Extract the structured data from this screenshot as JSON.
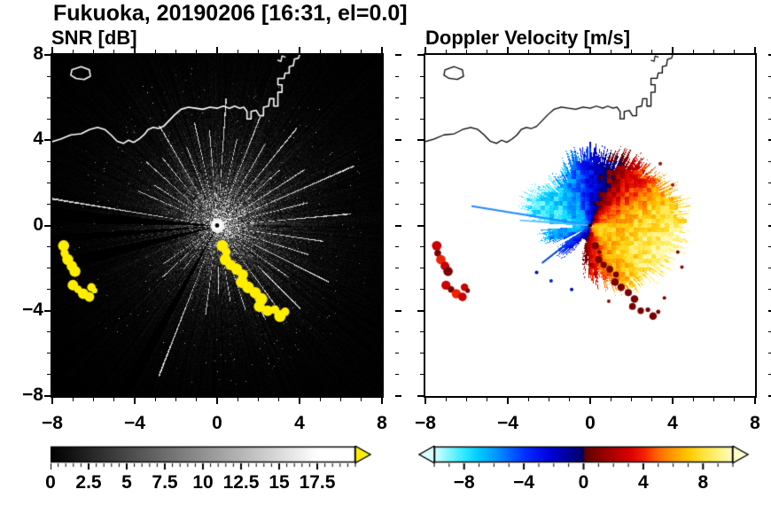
{
  "chart_data": {
    "type": "heatmap",
    "title": "Fukuoka, 20190206 [16:31, el=0.0]",
    "station": "Fukuoka",
    "date": "20190206",
    "time": "16:31",
    "elevation_deg": 0.0,
    "panels": [
      {
        "name": "snr",
        "title": "SNR [dB]",
        "xlim": [
          -8,
          8
        ],
        "ylim": [
          -8,
          8
        ],
        "xticks": [
          -8,
          -4,
          0,
          4,
          8
        ],
        "yticks": [
          -8,
          -4,
          0,
          4,
          8
        ],
        "minor_tick_step": 1,
        "background": "#000000",
        "colorbar": {
          "min": 0,
          "max": 20,
          "ticks": [
            0,
            2.5,
            5,
            7.5,
            10,
            12.5,
            15,
            17.5
          ],
          "minor_step": 0.5,
          "cmap": "grayscale",
          "cmap_max_value": 17.5,
          "over_color": "#ffee00"
        }
      },
      {
        "name": "velocity",
        "title": "Doppler Velocity [m/s]",
        "xlim": [
          -8,
          8
        ],
        "ylim": [
          -8,
          8
        ],
        "xticks": [
          -8,
          -4,
          0,
          4,
          8
        ],
        "yticks": [
          -8,
          -4,
          0,
          4,
          8
        ],
        "minor_tick_step": 1,
        "background": "#ffffff",
        "colorbar": {
          "min": -10,
          "max": 10,
          "ticks": [
            -8,
            -4,
            0,
            4,
            8
          ],
          "minor_step": 1,
          "stops": [
            [
              -10,
              "#d8ffff"
            ],
            [
              -9,
              "#7df5ff"
            ],
            [
              -8,
              "#2ee8ff"
            ],
            [
              -7,
              "#00c8ff"
            ],
            [
              -6,
              "#009dff"
            ],
            [
              -5,
              "#0066ff"
            ],
            [
              -4,
              "#0033ff"
            ],
            [
              -3,
              "#0011ee"
            ],
            [
              -2,
              "#0000cc"
            ],
            [
              -1,
              "#000099"
            ],
            [
              -0.05,
              "#000060"
            ],
            [
              0.05,
              "#5c0000"
            ],
            [
              1,
              "#8a0000"
            ],
            [
              2,
              "#b00000"
            ],
            [
              3,
              "#d60000"
            ],
            [
              4,
              "#f32000"
            ],
            [
              5,
              "#ff6a00"
            ],
            [
              6,
              "#ff9d00"
            ],
            [
              7,
              "#ffc800"
            ],
            [
              8,
              "#ffe43c"
            ],
            [
              9,
              "#fff27f"
            ],
            [
              10,
              "#fffdc8"
            ]
          ]
        }
      }
    ],
    "radar": {
      "center_xy": [
        0,
        0
      ],
      "max_radial_velocity": 8.6,
      "wind_dir_deg": -20
    },
    "coastline": {
      "main": [
        [
          -8.3,
          3.85
        ],
        [
          -7.6,
          4.05
        ],
        [
          -7.1,
          4.25
        ],
        [
          -6.6,
          4.3
        ],
        [
          -6.2,
          4.5
        ],
        [
          -5.8,
          4.6
        ],
        [
          -5.45,
          4.5
        ],
        [
          -5.15,
          4.25
        ],
        [
          -4.85,
          3.95
        ],
        [
          -4.55,
          3.85
        ],
        [
          -4.3,
          4.0
        ],
        [
          -4.05,
          3.9
        ],
        [
          -3.8,
          4.05
        ],
        [
          -3.55,
          4.25
        ],
        [
          -3.35,
          4.5
        ],
        [
          -3.1,
          4.6
        ],
        [
          -2.85,
          4.55
        ],
        [
          -2.6,
          4.65
        ],
        [
          -2.35,
          4.9
        ],
        [
          -2.05,
          5.2
        ],
        [
          -1.75,
          5.45
        ],
        [
          -1.4,
          5.55
        ],
        [
          -1.05,
          5.5
        ],
        [
          -0.7,
          5.45
        ],
        [
          -0.35,
          5.55
        ],
        [
          0.0,
          5.5
        ],
        [
          0.3,
          5.6
        ],
        [
          0.6,
          5.5
        ],
        [
          0.85,
          5.6
        ],
        [
          1.1,
          5.5
        ],
        [
          1.3,
          5.55
        ],
        [
          1.45,
          5.35
        ],
        [
          1.45,
          5.0
        ],
        [
          1.65,
          5.0
        ],
        [
          1.65,
          5.35
        ],
        [
          1.9,
          5.4
        ],
        [
          2.05,
          5.15
        ],
        [
          2.25,
          5.15
        ],
        [
          2.25,
          5.55
        ],
        [
          2.5,
          5.6
        ],
        [
          2.55,
          5.95
        ],
        [
          2.75,
          5.95
        ],
        [
          2.75,
          5.6
        ],
        [
          2.95,
          5.6
        ],
        [
          2.95,
          6.25
        ],
        [
          3.15,
          6.25
        ],
        [
          3.15,
          6.6
        ],
        [
          2.95,
          6.6
        ],
        [
          2.95,
          6.9
        ],
        [
          3.25,
          6.9
        ],
        [
          3.3,
          7.15
        ],
        [
          3.5,
          7.15
        ],
        [
          3.5,
          7.45
        ],
        [
          3.7,
          7.5
        ],
        [
          3.75,
          7.8
        ],
        [
          3.95,
          7.85
        ],
        [
          4.05,
          8.15
        ]
      ],
      "island": [
        [
          -7.05,
          7.3
        ],
        [
          -6.6,
          7.45
        ],
        [
          -6.2,
          7.3
        ],
        [
          -6.15,
          7.0
        ],
        [
          -6.45,
          6.85
        ],
        [
          -6.85,
          6.9
        ],
        [
          -7.1,
          7.05
        ],
        [
          -7.05,
          7.3
        ]
      ],
      "spit": [
        [
          2.95,
          7.75
        ],
        [
          3.1,
          7.7
        ],
        [
          3.15,
          7.95
        ],
        [
          3.3,
          7.9
        ]
      ]
    },
    "echo_patches": {
      "southwest_arc1": [
        [
          -7.45,
          -0.95
        ],
        [
          -7.4,
          -1.3
        ],
        [
          -7.25,
          -1.6
        ],
        [
          -7.05,
          -1.9
        ],
        [
          -6.9,
          -2.15
        ]
      ],
      "southwest_arc2": [
        [
          -7.0,
          -2.8
        ],
        [
          -6.75,
          -3.0
        ],
        [
          -6.5,
          -3.2
        ],
        [
          -6.2,
          -3.35
        ]
      ],
      "southwest_small": [
        [
          -6.1,
          -2.9
        ],
        [
          -5.95,
          -3.05
        ]
      ],
      "southeast_chain": [
        [
          0.25,
          -0.95
        ],
        [
          0.45,
          -1.25
        ],
        [
          0.4,
          -1.6
        ],
        [
          0.65,
          -1.85
        ],
        [
          0.95,
          -2.05
        ],
        [
          1.25,
          -2.3
        ],
        [
          1.2,
          -2.65
        ],
        [
          1.5,
          -2.9
        ],
        [
          1.85,
          -3.15
        ],
        [
          2.15,
          -3.45
        ],
        [
          2.05,
          -3.8
        ],
        [
          2.45,
          -4.0
        ],
        [
          2.8,
          -3.95
        ],
        [
          3.05,
          -4.25
        ],
        [
          3.3,
          -4.05
        ]
      ],
      "snr_color": "#ffee00",
      "vel_colors": [
        "#cc0000",
        "#7a0000",
        "#ee2200"
      ]
    },
    "snr_field": {
      "spokes": [
        [
          5,
          6.5
        ],
        [
          14,
          4.5
        ],
        [
          23,
          7.2
        ],
        [
          32,
          5
        ],
        [
          41,
          4
        ],
        [
          50,
          6
        ],
        [
          59,
          4.5
        ],
        [
          68,
          5.5
        ],
        [
          77,
          4.2
        ],
        [
          86,
          6
        ],
        [
          95,
          4.5
        ],
        [
          103,
          5
        ],
        [
          112,
          4
        ],
        [
          121,
          5.5
        ],
        [
          130,
          4.2
        ],
        [
          139,
          4.6
        ],
        [
          148,
          3.6
        ],
        [
          157,
          4.2
        ],
        [
          171,
          8.2
        ],
        [
          214,
          3.2
        ],
        [
          222,
          3.6
        ],
        [
          231,
          2.6
        ],
        [
          248,
          7.6
        ],
        [
          262,
          4.2
        ],
        [
          271,
          3.2
        ],
        [
          280,
          3.6
        ],
        [
          289,
          4.2
        ],
        [
          298,
          5
        ],
        [
          307,
          4.6
        ],
        [
          316,
          5.6
        ],
        [
          325,
          4.2
        ],
        [
          334,
          6
        ],
        [
          343,
          4.6
        ],
        [
          352,
          5.2
        ]
      ],
      "blocked_wedges": [
        [
          174,
          179
        ],
        [
          183,
          186
        ],
        [
          191,
          196
        ],
        [
          238,
          242
        ]
      ],
      "sector_gain": [
        [
          0,
          1.1
        ],
        [
          50,
          1.18
        ],
        [
          100,
          1.0
        ],
        [
          140,
          0.9
        ],
        [
          180,
          0.78
        ],
        [
          230,
          0.7
        ],
        [
          280,
          0.85
        ],
        [
          330,
          1.05
        ],
        [
          360,
          1.1
        ]
      ]
    },
    "velocity_field": {
      "fan_radius_by_angle": [
        [
          0,
          4.4
        ],
        [
          15,
          4.5
        ],
        [
          30,
          4.1
        ],
        [
          45,
          3.8
        ],
        [
          60,
          3.6
        ],
        [
          75,
          3.3
        ],
        [
          90,
          3.6
        ],
        [
          105,
          3.3
        ],
        [
          120,
          2.9
        ],
        [
          135,
          2.7
        ],
        [
          150,
          3.1
        ],
        [
          165,
          3.3
        ],
        [
          175,
          2.6
        ],
        [
          185,
          2.2
        ],
        [
          195,
          2.4
        ],
        [
          205,
          1.6
        ],
        [
          215,
          2.0
        ],
        [
          225,
          1.7
        ],
        [
          235,
          1.1
        ],
        [
          245,
          0.9
        ],
        [
          255,
          1.3
        ],
        [
          265,
          2.0
        ],
        [
          275,
          2.4
        ],
        [
          285,
          2.7
        ],
        [
          295,
          3.1
        ],
        [
          305,
          3.3
        ],
        [
          315,
          3.6
        ],
        [
          330,
          3.9
        ],
        [
          345,
          4.3
        ],
        [
          360,
          4.4
        ]
      ],
      "gaps": [
        {
          "a1": 177,
          "a2": 184,
          "rmin": 0.9
        },
        {
          "a1": 206,
          "a2": 211,
          "rmin": 0.4
        },
        {
          "a1": 236,
          "a2": 252,
          "rmin": 0.7
        }
      ],
      "thin_rays": [
        {
          "a": 171,
          "len": 5.8,
          "w": 2,
          "color": "#2288ff"
        },
        {
          "a": 176,
          "len": 3.4,
          "w": 1.5,
          "color": "#55bbff"
        },
        {
          "a": 217,
          "len": 2.9,
          "w": 2,
          "color": "#0044dd"
        }
      ],
      "edge_specks": [
        {
          "xy": [
            4.25,
            -1.25
          ],
          "color": "#7a0000"
        },
        {
          "xy": [
            4.45,
            -1.95
          ],
          "color": "#9a0000"
        },
        {
          "xy": [
            3.6,
            -3.4
          ],
          "color": "#7a0000"
        },
        {
          "xy": [
            0.9,
            -3.55
          ],
          "color": "#8a0000"
        },
        {
          "xy": [
            -0.9,
            -3.0
          ],
          "color": "#001199"
        },
        {
          "xy": [
            -1.9,
            -2.6
          ],
          "color": "#0022cc"
        },
        {
          "xy": [
            -2.6,
            -2.2
          ],
          "color": "#001199"
        },
        {
          "xy": [
            4.0,
            1.9
          ],
          "color": "#aa1100"
        },
        {
          "xy": [
            3.4,
            2.9
          ],
          "color": "#881100"
        }
      ]
    }
  }
}
